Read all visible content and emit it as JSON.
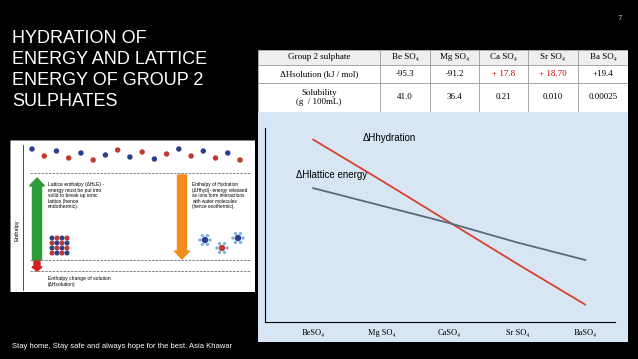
{
  "page_number": "7",
  "title_lines": [
    "HYDRATION OF",
    "ENERGY AND LATTICE",
    "ENERGY OF GROUP 2",
    "SULPHATES"
  ],
  "footer": "Stay home, Stay safe and always hope for the best. Asia Khawar",
  "table": {
    "header": [
      "Group 2 sulphate",
      "Be SO₄",
      "Mg SO₄",
      "Ca SO₄",
      "Sr SO₄",
      "Ba SO₄"
    ],
    "rows": [
      {
        "label_lines": [
          "ΔHsolution (kJ / mol)"
        ],
        "values": [
          "-95.3",
          "-91.2",
          "+ 17.8",
          "+ 18.70",
          "+19.4"
        ],
        "colors": [
          "#000000",
          "#000000",
          "#cc0000",
          "#cc0000",
          "#000000"
        ]
      },
      {
        "label_lines": [
          "Solubility",
          "(g  / 100mL)"
        ],
        "values": [
          "41.0",
          "36.4",
          "0.21",
          "0.010",
          "0.00025"
        ],
        "colors": [
          "#000000",
          "#000000",
          "#000000",
          "#000000",
          "#000000"
        ]
      }
    ]
  },
  "diagram": {
    "axis_label": "Enthalpy",
    "lattice_lines": [
      "Lattice enthalpy (ΔHLE) -",
      "energy must be put into",
      "solid to break up ionic",
      "lattice (hence",
      "endothermic)."
    ],
    "hydration_lines": [
      "Enthalpy of Hydration",
      "(ΔHhyd)- energy released",
      "as ions form interactions",
      "with water molecules",
      "(hence exothermic)."
    ],
    "solution_lines": [
      "Enthalpy change of solution",
      "(ΔHsolution)"
    ]
  },
  "chart_data": {
    "type": "line",
    "categories": [
      "BeSO₄",
      "Mg SO₄",
      "CaSO₄",
      "Sr SO₄",
      "BaSO₄"
    ],
    "ylim": [
      0,
      100
    ],
    "tick_labels": "x",
    "series": [
      {
        "name": "ΔHhydration",
        "color": "#d9402b",
        "values": [
          94,
          73,
          51.5,
          30,
          9
        ]
      },
      {
        "name": "ΔHlattice energy",
        "color": "#5a6a7a",
        "values": [
          69,
          60,
          51,
          41,
          32
        ]
      }
    ]
  }
}
